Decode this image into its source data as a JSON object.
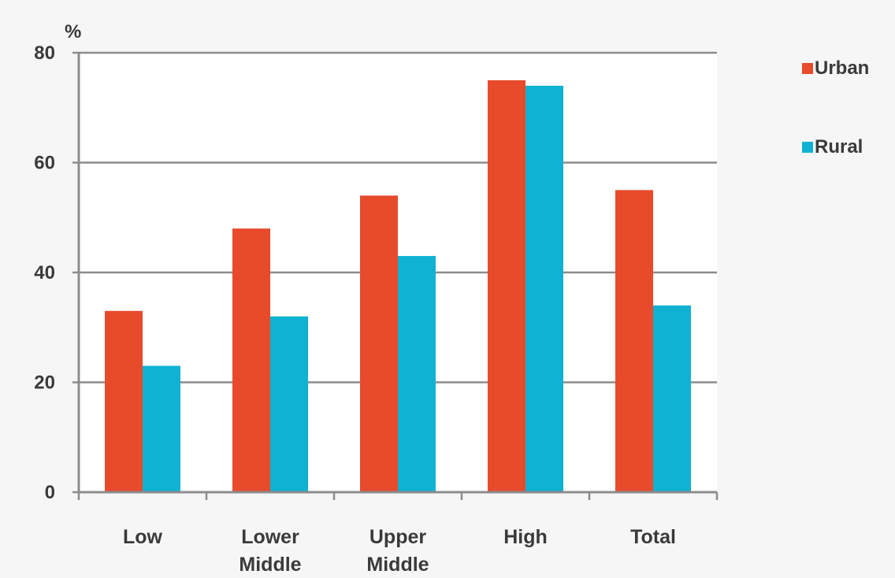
{
  "chart_data": {
    "type": "bar",
    "ylabel": "%",
    "ylim": [
      0,
      80
    ],
    "yticks": [
      0,
      20,
      40,
      60,
      80
    ],
    "categories": [
      {
        "line1": "Low",
        "line2": ""
      },
      {
        "line1": "Lower",
        "line2": "Middle"
      },
      {
        "line1": "Upper",
        "line2": "Middle"
      },
      {
        "line1": "High",
        "line2": ""
      },
      {
        "line1": "Total",
        "line2": ""
      }
    ],
    "series": [
      {
        "name": "Urban",
        "color": "#e84a2c",
        "values": [
          33,
          48,
          54,
          75,
          55
        ]
      },
      {
        "name": "Rural",
        "color": "#0fb2d2",
        "values": [
          23,
          32,
          43,
          74,
          34
        ]
      }
    ],
    "grid": true,
    "legend_position": "right"
  }
}
